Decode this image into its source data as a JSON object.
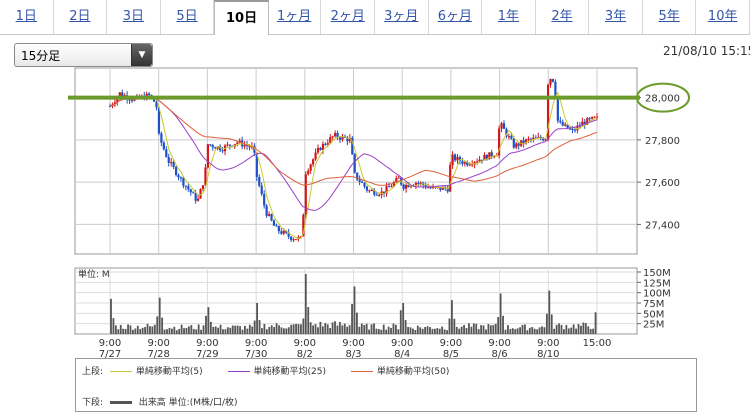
{
  "tabs": [
    {
      "label": "1日"
    },
    {
      "label": "2日"
    },
    {
      "label": "3日"
    },
    {
      "label": "5日"
    },
    {
      "label": "10日",
      "active": true
    },
    {
      "label": "1ヶ月"
    },
    {
      "label": "2ヶ月"
    },
    {
      "label": "3ヶ月"
    },
    {
      "label": "6ヶ月"
    },
    {
      "label": "1年"
    },
    {
      "label": "2年"
    },
    {
      "label": "3年"
    },
    {
      "label": "5年"
    },
    {
      "label": "10年"
    }
  ],
  "interval_select": {
    "value": "15分足"
  },
  "timestamp": "21/08/10 15:15",
  "legend": {
    "upper_label": "上段:",
    "ma5": "単純移動平均(5)",
    "ma25": "単純移動平均(25)",
    "ma50": "単純移動平均(50)",
    "lower_label": "下段:",
    "volume": "出来高 単位:(M株/口/枚)"
  },
  "colors": {
    "ma5": "#c8c832",
    "ma25": "#9b40c8",
    "ma50": "#e0603a",
    "up": "#d01818",
    "down": "#1e50c8",
    "volume": "#555555",
    "annotation": "#6b9b2a"
  },
  "chart_data": [
    {
      "type": "candlestick",
      "title": "",
      "y_ticks": [
        "28,000",
        "27,800",
        "27,600",
        "27,400"
      ],
      "ylim": [
        27260,
        28140
      ],
      "x_ticks": [
        {
          "time": "9:00",
          "date": "7/27"
        },
        {
          "time": "9:00",
          "date": "7/28"
        },
        {
          "time": "9:00",
          "date": "7/29"
        },
        {
          "time": "9:00",
          "date": "7/30"
        },
        {
          "time": "9:00",
          "date": "8/2"
        },
        {
          "time": "9:00",
          "date": "8/3"
        },
        {
          "time": "9:00",
          "date": "8/4"
        },
        {
          "time": "9:00",
          "date": "8/5"
        },
        {
          "time": "9:00",
          "date": "8/6"
        },
        {
          "time": "9:00",
          "date": "8/10"
        },
        {
          "time": "15:00",
          "date": ""
        }
      ],
      "price_path": [
        [
          0,
          27960
        ],
        [
          0.2,
          28020
        ],
        [
          0.5,
          27990
        ],
        [
          0.8,
          28010
        ],
        [
          0.95,
          27970
        ],
        [
          1.0,
          27820
        ],
        [
          1.2,
          27700
        ],
        [
          1.5,
          27600
        ],
        [
          1.8,
          27510
        ],
        [
          1.95,
          27630
        ],
        [
          2.0,
          27780
        ],
        [
          2.3,
          27760
        ],
        [
          2.6,
          27790
        ],
        [
          2.95,
          27760
        ],
        [
          3.0,
          27640
        ],
        [
          3.2,
          27460
        ],
        [
          3.4,
          27380
        ],
        [
          3.7,
          27340
        ],
        [
          3.95,
          27330
        ],
        [
          4.0,
          27640
        ],
        [
          4.3,
          27760
        ],
        [
          4.6,
          27820
        ],
        [
          4.95,
          27800
        ],
        [
          5.0,
          27640
        ],
        [
          5.3,
          27560
        ],
        [
          5.6,
          27550
        ],
        [
          5.95,
          27620
        ],
        [
          6.0,
          27580
        ],
        [
          6.3,
          27600
        ],
        [
          6.6,
          27570
        ],
        [
          6.95,
          27570
        ],
        [
          7.0,
          27720
        ],
        [
          7.3,
          27690
        ],
        [
          7.6,
          27710
        ],
        [
          7.95,
          27740
        ],
        [
          8.0,
          27880
        ],
        [
          8.3,
          27770
        ],
        [
          8.6,
          27800
        ],
        [
          8.95,
          27810
        ],
        [
          9.0,
          28100
        ],
        [
          9.12,
          28080
        ],
        [
          9.2,
          27880
        ],
        [
          9.5,
          27840
        ],
        [
          9.7,
          27880
        ],
        [
          9.95,
          27900
        ]
      ],
      "sma_reference_line": 28000,
      "series": [
        {
          "name": "単純移動平均(5)"
        },
        {
          "name": "単純移動平均(25)"
        },
        {
          "name": "単純移動平均(50)"
        }
      ]
    },
    {
      "type": "bar",
      "unit_label": "単位: M",
      "y_ticks": [
        "150M",
        "125M",
        "100M",
        "75M",
        "50M",
        "25M"
      ],
      "ylim": [
        0,
        150
      ],
      "session_peaks": [
        85,
        88,
        65,
        75,
        145,
        115,
        75,
        82,
        98,
        105
      ],
      "session_base": [
        20,
        18,
        18,
        22,
        25,
        20,
        18,
        20,
        18,
        22
      ]
    }
  ]
}
